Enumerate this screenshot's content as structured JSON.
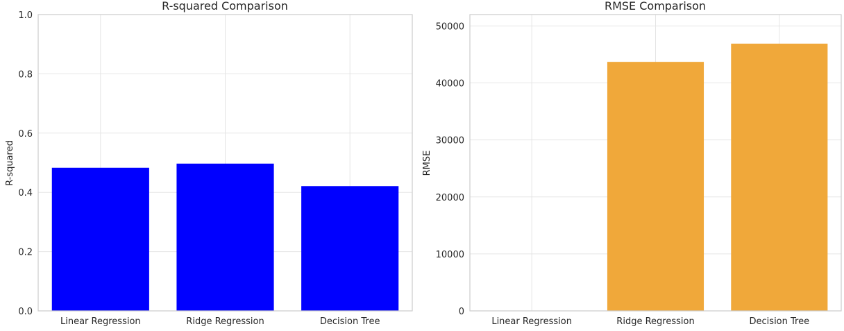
{
  "chart_data": [
    {
      "type": "bar",
      "title": "R-squared Comparison",
      "xlabel": "",
      "ylabel": "R-squared",
      "categories": [
        "Linear Regression",
        "Ridge Regression",
        "Decision Tree"
      ],
      "values": [
        0.483,
        0.497,
        0.421
      ],
      "ylim": [
        0,
        1.0
      ],
      "yticks": [
        0.0,
        0.2,
        0.4,
        0.6,
        0.8,
        1.0
      ],
      "ytick_labels": [
        "0.0",
        "0.2",
        "0.4",
        "0.6",
        "0.8",
        "1.0"
      ],
      "color": "#0000ff",
      "grid": true
    },
    {
      "type": "bar",
      "title": "RMSE Comparison",
      "xlabel": "",
      "ylabel": "RMSE",
      "categories": [
        "Linear Regression",
        "Ridge Regression",
        "Decision Tree"
      ],
      "values": [
        0,
        43700,
        46900
      ],
      "ylim": [
        0,
        52000
      ],
      "yticks": [
        0,
        10000,
        20000,
        30000,
        40000,
        50000
      ],
      "ytick_labels": [
        "0",
        "10000",
        "20000",
        "30000",
        "40000",
        "50000"
      ],
      "color": "#f0a83a",
      "grid": true
    }
  ]
}
